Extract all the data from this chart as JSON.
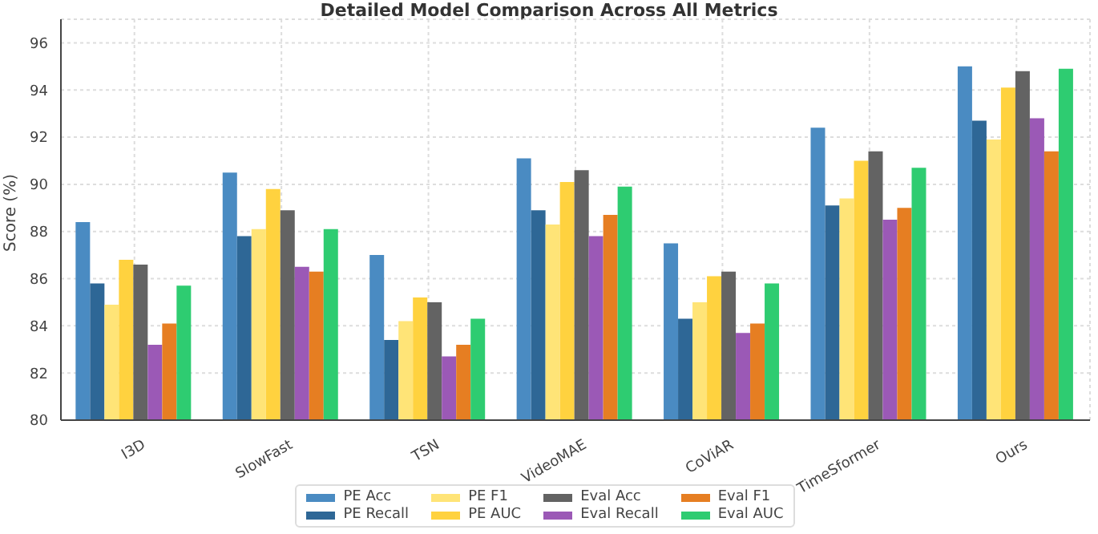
{
  "chart_data": {
    "type": "bar",
    "title": "Detailed Model Comparison Across All Metrics",
    "ylabel": "Score (%)",
    "categories": [
      "I3D",
      "SlowFast",
      "TSN",
      "VideoMAE",
      "CoViAR",
      "TimeSformer",
      "Ours"
    ],
    "series": [
      {
        "name": "PE Acc",
        "color": "#4a8bc2",
        "values": [
          88.4,
          90.5,
          87.0,
          91.1,
          87.5,
          92.4,
          95.0
        ]
      },
      {
        "name": "PE Recall",
        "color": "#2e6796",
        "values": [
          85.8,
          87.8,
          83.4,
          88.9,
          84.3,
          89.1,
          92.7
        ]
      },
      {
        "name": "PE F1",
        "color": "#ffe477",
        "values": [
          84.9,
          88.1,
          84.2,
          88.3,
          85.0,
          89.4,
          91.9
        ]
      },
      {
        "name": "PE AUC",
        "color": "#ffd23f",
        "values": [
          86.8,
          89.8,
          85.2,
          90.1,
          86.1,
          91.0,
          94.1
        ]
      },
      {
        "name": "Eval Acc",
        "color": "#636363",
        "values": [
          86.6,
          88.9,
          85.0,
          90.6,
          86.3,
          91.4,
          94.8
        ]
      },
      {
        "name": "Eval Recall",
        "color": "#9b59b6",
        "values": [
          83.2,
          86.5,
          82.7,
          87.8,
          83.7,
          88.5,
          92.8
        ]
      },
      {
        "name": "Eval F1",
        "color": "#e67e22",
        "values": [
          84.1,
          86.3,
          83.2,
          88.7,
          84.1,
          89.0,
          91.4
        ]
      },
      {
        "name": "Eval AUC",
        "color": "#2ecc71",
        "values": [
          85.7,
          88.1,
          84.3,
          89.9,
          85.8,
          90.7,
          94.9
        ]
      }
    ],
    "ylim": [
      80,
      97
    ],
    "yticks": [
      80,
      82,
      84,
      86,
      88,
      90,
      92,
      94,
      96
    ],
    "grid": true,
    "legend": "bottom"
  }
}
